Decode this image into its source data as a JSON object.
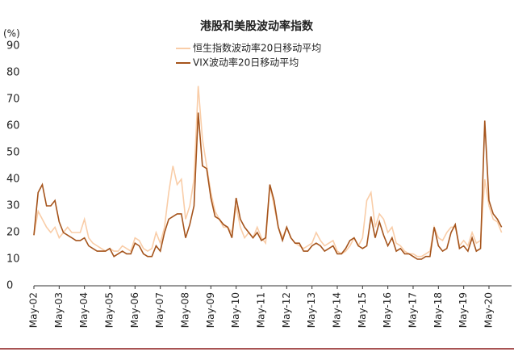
{
  "chart_data": {
    "type": "line",
    "title": "港股和美股波动率指数",
    "y_label": "(%)",
    "categories": [
      "May-02",
      null,
      null,
      null,
      null,
      null,
      "May-03",
      null,
      null,
      null,
      null,
      null,
      "May-04",
      null,
      null,
      null,
      null,
      null,
      "May-05",
      null,
      null,
      null,
      null,
      null,
      "May-06",
      null,
      null,
      null,
      null,
      null,
      "May-07",
      null,
      null,
      null,
      null,
      null,
      "May-08",
      null,
      null,
      null,
      null,
      null,
      "May-09",
      null,
      null,
      null,
      null,
      null,
      "May-10",
      null,
      null,
      null,
      null,
      null,
      "May-11",
      null,
      null,
      null,
      null,
      null,
      "May-12",
      null,
      null,
      null,
      null,
      null,
      "May-13",
      null,
      null,
      null,
      null,
      null,
      "May-14",
      null,
      null,
      null,
      null,
      null,
      "May-15",
      null,
      null,
      null,
      null,
      null,
      "May-16",
      null,
      null,
      null,
      null,
      null,
      "May-17",
      null,
      null,
      null,
      null,
      null,
      "May-18",
      null,
      null,
      null,
      null,
      null,
      "May-19",
      null,
      null,
      null,
      null,
      null,
      "May-20",
      null,
      null,
      null
    ],
    "series": [
      {
        "name": "恒生指数波动率20日移动平均",
        "color": "#f9cda8",
        "values": [
          19,
          28,
          25,
          22,
          20,
          22,
          18,
          20,
          22,
          20,
          20,
          20,
          25,
          18,
          16,
          15,
          14,
          13,
          14,
          13,
          13,
          15,
          14,
          13,
          18,
          17,
          14,
          13,
          14,
          20,
          16,
          22,
          35,
          45,
          38,
          40,
          25,
          30,
          40,
          75,
          55,
          45,
          35,
          28,
          25,
          22,
          22,
          20,
          30,
          22,
          18,
          20,
          18,
          22,
          18,
          16,
          38,
          30,
          22,
          18,
          22,
          18,
          16,
          15,
          14,
          15,
          16,
          20,
          17,
          15,
          16,
          17,
          13,
          12,
          13,
          15,
          18,
          15,
          18,
          32,
          35,
          22,
          27,
          25,
          20,
          22,
          16,
          15,
          13,
          12,
          12,
          11,
          11,
          12,
          13,
          22,
          18,
          17,
          20,
          22,
          22,
          15,
          17,
          15,
          20,
          16,
          17,
          40,
          30,
          25,
          24,
          20
        ]
      },
      {
        "name": "VIX波动率20日移动平均",
        "color": "#a5541c",
        "values": [
          19,
          35,
          38,
          30,
          30,
          32,
          24,
          20,
          19,
          18,
          17,
          17,
          18,
          15,
          14,
          13,
          13,
          13,
          14,
          11,
          12,
          13,
          12,
          12,
          16,
          15,
          12,
          11,
          11,
          15,
          13,
          20,
          25,
          26,
          27,
          27,
          18,
          23,
          30,
          65,
          45,
          44,
          33,
          26,
          25,
          23,
          22,
          18,
          33,
          25,
          22,
          20,
          18,
          20,
          17,
          18,
          38,
          32,
          22,
          17,
          22,
          18,
          16,
          16,
          13,
          13,
          15,
          16,
          15,
          13,
          14,
          15,
          12,
          12,
          14,
          17,
          18,
          15,
          14,
          15,
          26,
          18,
          24,
          19,
          15,
          18,
          13,
          14,
          12,
          12,
          11,
          10,
          10,
          11,
          11,
          22,
          15,
          13,
          14,
          20,
          23,
          14,
          15,
          13,
          18,
          13,
          14,
          62,
          32,
          27,
          25,
          22
        ]
      }
    ],
    "ylim": [
      0,
      90
    ],
    "yticks": [
      0,
      10,
      20,
      30,
      40,
      50,
      60,
      70,
      80,
      90
    ]
  }
}
